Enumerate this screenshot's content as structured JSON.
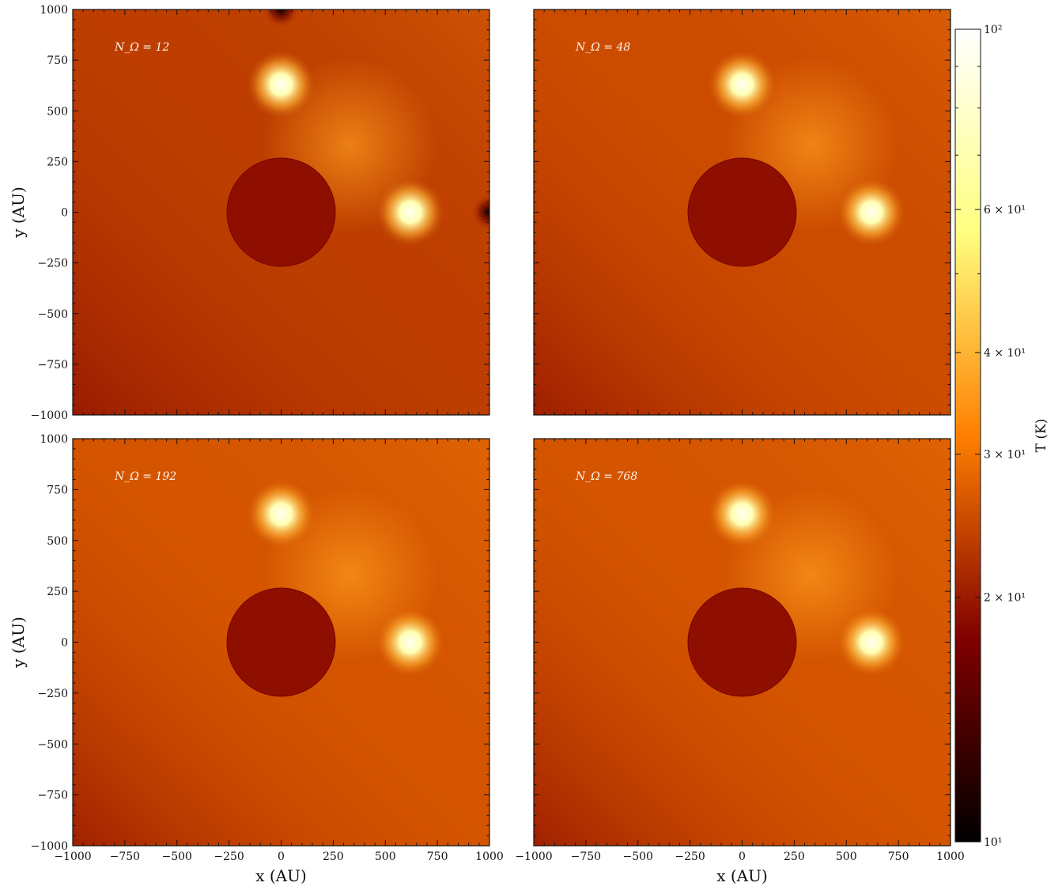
{
  "figure": {
    "colormap": "afmhot",
    "accent_colors": {
      "cold": "#000000",
      "mid": "#9a1e00",
      "background": "#d55a12",
      "hot": "#fff4b0",
      "max": "#ffffff"
    }
  },
  "chart_data": [
    {
      "type": "heatmap",
      "panel_label": "N_Ω = 12",
      "xlim": [
        -1000,
        1000
      ],
      "ylim": [
        -1000,
        1000
      ],
      "xticks": [
        -1000,
        -750,
        -500,
        -250,
        0,
        250,
        500,
        750,
        1000
      ],
      "yticks": [
        -1000,
        -750,
        -500,
        -250,
        0,
        250,
        500,
        750,
        1000
      ],
      "ylabel": "y (AU)",
      "xlabel": "",
      "background_T": 23.5,
      "features": [
        {
          "kind": "disk",
          "x": 0,
          "y": 0,
          "radius": 260,
          "T": 19
        },
        {
          "kind": "hot_source",
          "x": 0,
          "y": 630,
          "T": 95
        },
        {
          "kind": "hot_source",
          "x": 620,
          "y": 0,
          "T": 95
        },
        {
          "kind": "cold_spot",
          "x": 0,
          "y": 1000,
          "T": 10
        },
        {
          "kind": "cold_spot",
          "x": 1000,
          "y": 0,
          "T": 10
        }
      ]
    },
    {
      "type": "heatmap",
      "panel_label": "N_Ω = 48",
      "xlim": [
        -1000,
        1000
      ],
      "ylim": [
        -1000,
        1000
      ],
      "xticks": [
        -1000,
        -750,
        -500,
        -250,
        0,
        250,
        500,
        750,
        1000
      ],
      "yticks": [
        -1000,
        -750,
        -500,
        -250,
        0,
        250,
        500,
        750,
        1000
      ],
      "ylabel": "",
      "xlabel": "",
      "background_T": 25,
      "features": [
        {
          "kind": "disk",
          "x": 0,
          "y": 0,
          "radius": 260,
          "T": 19
        },
        {
          "kind": "hot_source",
          "x": 0,
          "y": 630,
          "T": 95
        },
        {
          "kind": "hot_source",
          "x": 620,
          "y": 0,
          "T": 95
        }
      ]
    },
    {
      "type": "heatmap",
      "panel_label": "N_Ω = 192",
      "xlim": [
        -1000,
        1000
      ],
      "ylim": [
        -1000,
        1000
      ],
      "xticks": [
        -1000,
        -750,
        -500,
        -250,
        0,
        250,
        500,
        750,
        1000
      ],
      "yticks": [
        -1000,
        -750,
        -500,
        -250,
        0,
        250,
        500,
        750,
        1000
      ],
      "ylabel": "y (AU)",
      "xlabel": "x (AU)",
      "background_T": 26,
      "features": [
        {
          "kind": "disk",
          "x": 0,
          "y": 0,
          "radius": 260,
          "T": 19
        },
        {
          "kind": "hot_source",
          "x": 0,
          "y": 630,
          "T": 95
        },
        {
          "kind": "hot_source",
          "x": 620,
          "y": 0,
          "T": 95
        }
      ]
    },
    {
      "type": "heatmap",
      "panel_label": "N_Ω = 768",
      "xlim": [
        -1000,
        1000
      ],
      "ylim": [
        -1000,
        1000
      ],
      "xticks": [
        -1000,
        -750,
        -500,
        -250,
        0,
        250,
        500,
        750,
        1000
      ],
      "yticks": [
        -1000,
        -750,
        -500,
        -250,
        0,
        250,
        500,
        750,
        1000
      ],
      "ylabel": "",
      "xlabel": "x (AU)",
      "background_T": 26,
      "features": [
        {
          "kind": "disk",
          "x": 0,
          "y": 0,
          "radius": 260,
          "T": 19
        },
        {
          "kind": "hot_source",
          "x": 0,
          "y": 630,
          "T": 95
        },
        {
          "kind": "hot_source",
          "x": 620,
          "y": 0,
          "T": 95
        }
      ]
    }
  ],
  "colorbar": {
    "label": "T (K)",
    "scale": "log",
    "range": [
      10,
      100
    ],
    "ticks": [
      {
        "value": 100,
        "label": "10²"
      },
      {
        "value": 60,
        "label": "6 × 10¹"
      },
      {
        "value": 40,
        "label": "4 × 10¹"
      },
      {
        "value": 30,
        "label": "3 × 10¹"
      },
      {
        "value": 20,
        "label": "2 × 10¹"
      },
      {
        "value": 10,
        "label": "10¹"
      }
    ]
  }
}
